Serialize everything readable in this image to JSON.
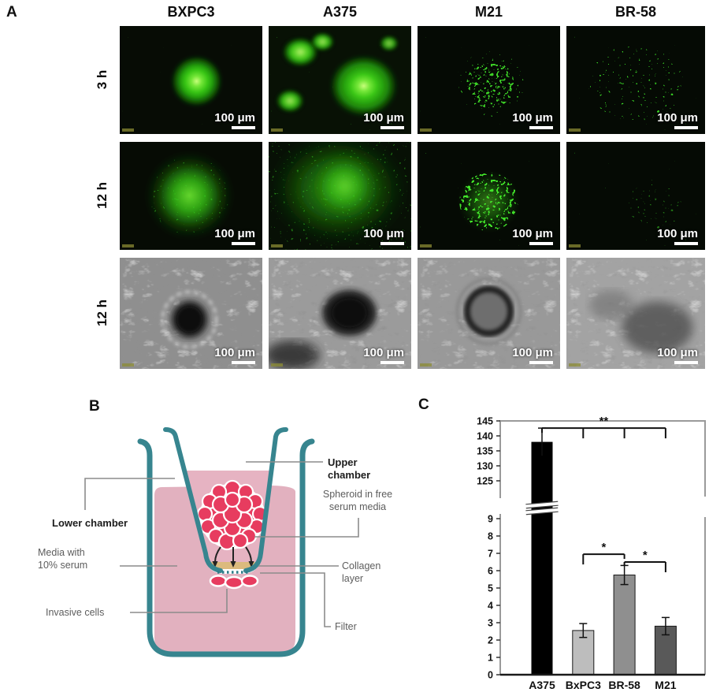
{
  "figure": {
    "panel_a": {
      "label": "A",
      "columns": [
        "BXPC3",
        "A375",
        "M21",
        "BR-58"
      ],
      "rows": [
        "3 h",
        "12 h",
        "12 h"
      ],
      "scale_label": "100 μm"
    },
    "panel_b": {
      "label": "B",
      "labels": {
        "upper_chamber": "Upper chamber",
        "spheroid_1": "Spheroid in free",
        "spheroid_2": "serum media",
        "collagen": "Collagen layer",
        "filter": "Filter",
        "lower_chamber": "Lower chamber",
        "media_1": "Media with",
        "media_2": "10% serum",
        "invasive": "Invasive cells"
      },
      "colors": {
        "outline": "#37858f",
        "media": "#e2b1bf",
        "cup_media": "#e6b3c2",
        "cells": "#e73c5f",
        "collagen": "#dcba7d"
      }
    },
    "panel_c": {
      "label": "C"
    }
  },
  "chart_data": {
    "type": "bar",
    "categories": [
      "A375",
      "BxPC3",
      "BR-58",
      "M21"
    ],
    "values": [
      138,
      2.55,
      5.75,
      2.8
    ],
    "errors": [
      4.6,
      0.4,
      0.55,
      0.5
    ],
    "bar_colors": [
      "#000000",
      "#bdbdbd",
      "#8f8f8f",
      "#595959"
    ],
    "title": "",
    "xlabel": "",
    "ylabel": "",
    "broken_axis": true,
    "upper_axis": {
      "ticks": [
        125,
        130,
        135,
        140,
        145
      ],
      "range": [
        120,
        146
      ]
    },
    "lower_axis": {
      "ticks": [
        0,
        1,
        2,
        3,
        4,
        5,
        6,
        7,
        8,
        9
      ],
      "range": [
        0,
        9.3
      ]
    },
    "grid": false,
    "legend": false,
    "significance": [
      {
        "label": "**",
        "segment": "upper",
        "level": 142.6,
        "from": "A375",
        "to": "M21",
        "from_drop": 6,
        "to_drop": 13,
        "ticks_at": [
          "BxPC3",
          "BR-58"
        ]
      },
      {
        "label": "*",
        "segment": "lower",
        "level": 6.95,
        "from": "BxPC3",
        "to": "BR-58",
        "from_drop": 13,
        "to_drop": 6,
        "ticks_at": []
      },
      {
        "label": "*",
        "segment": "lower",
        "level": 6.5,
        "from": "BR-58",
        "to": "M21",
        "from_drop": 5,
        "to_drop": 13,
        "ticks_at": []
      }
    ]
  }
}
